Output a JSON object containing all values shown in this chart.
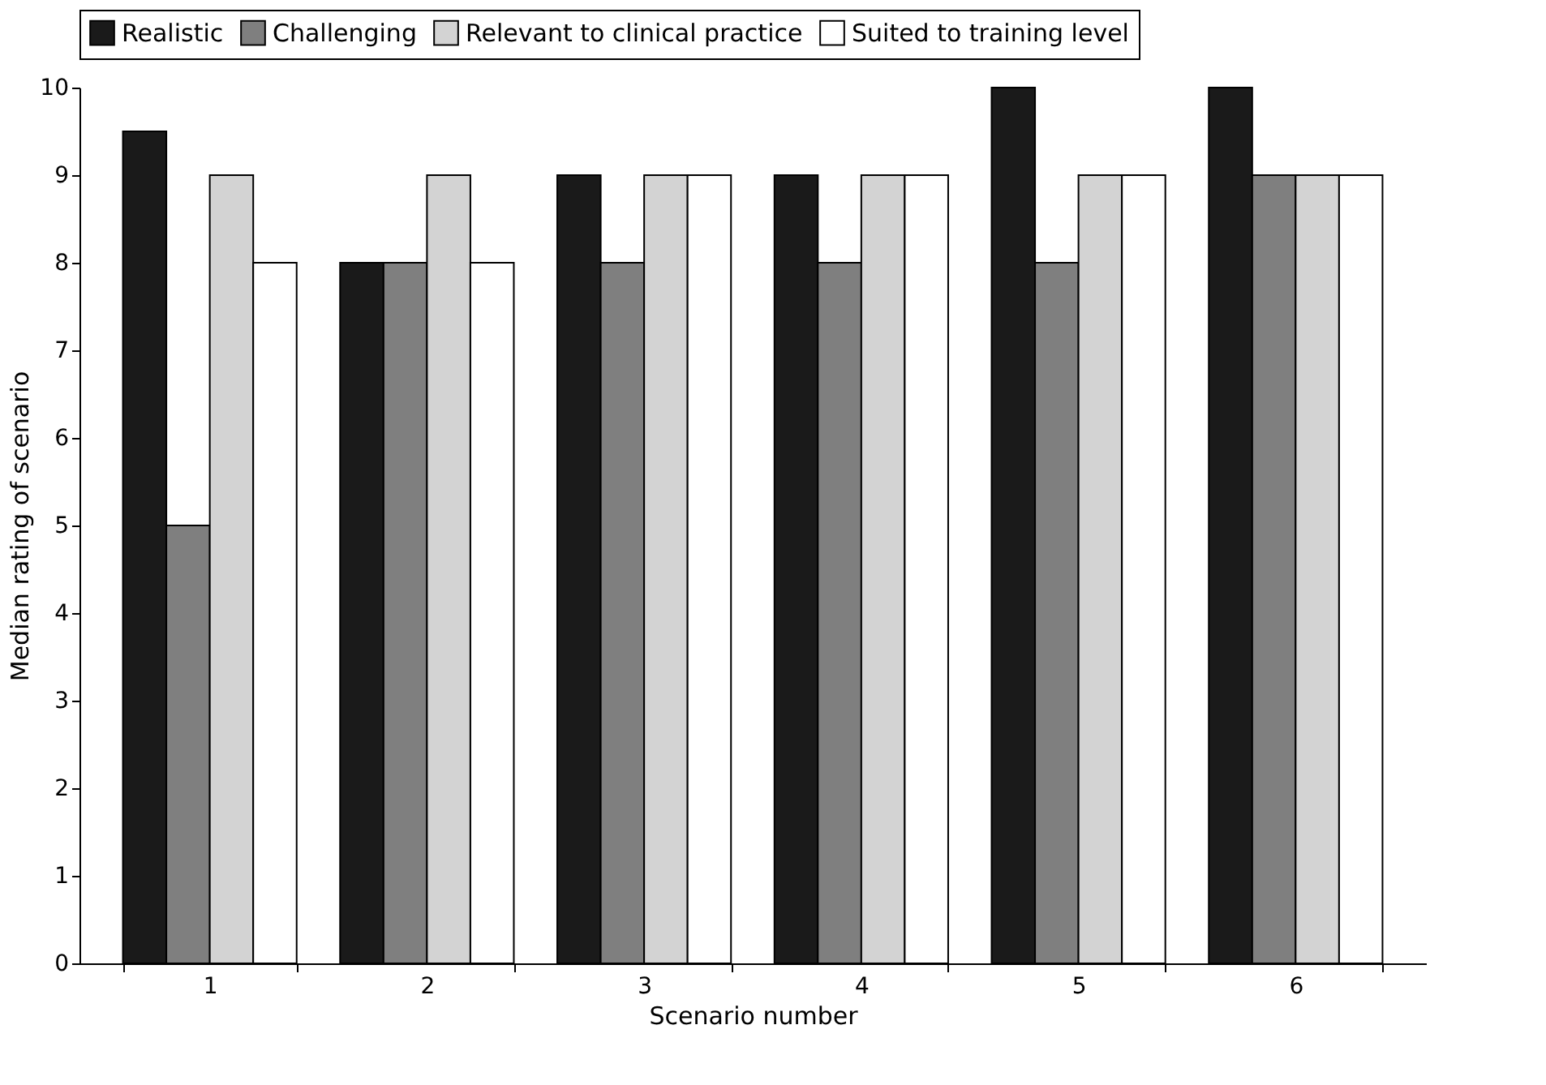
{
  "chart_data": {
    "type": "bar",
    "xlabel": "Scenario number",
    "ylabel": "Median rating of scenario",
    "categories": [
      "1",
      "2",
      "3",
      "4",
      "5",
      "6"
    ],
    "series": [
      {
        "name": "Realistic",
        "color": "#1a1a1a",
        "values": [
          9.5,
          8,
          9,
          9,
          10,
          10
        ]
      },
      {
        "name": "Challenging",
        "color": "#7f7f7f",
        "values": [
          5,
          8,
          8,
          8,
          8,
          9
        ]
      },
      {
        "name": "Relevant to clinical practice",
        "color": "#d3d3d3",
        "values": [
          9,
          9,
          9,
          9,
          9,
          9
        ]
      },
      {
        "name": "Suited to training level",
        "color": "#ffffff",
        "values": [
          8,
          8,
          9,
          9,
          9,
          9
        ]
      }
    ],
    "ylim": [
      0,
      10
    ],
    "yticks": [
      0,
      1,
      2,
      3,
      4,
      5,
      6,
      7,
      8,
      9,
      10
    ],
    "grid": false,
    "legend": "top"
  }
}
